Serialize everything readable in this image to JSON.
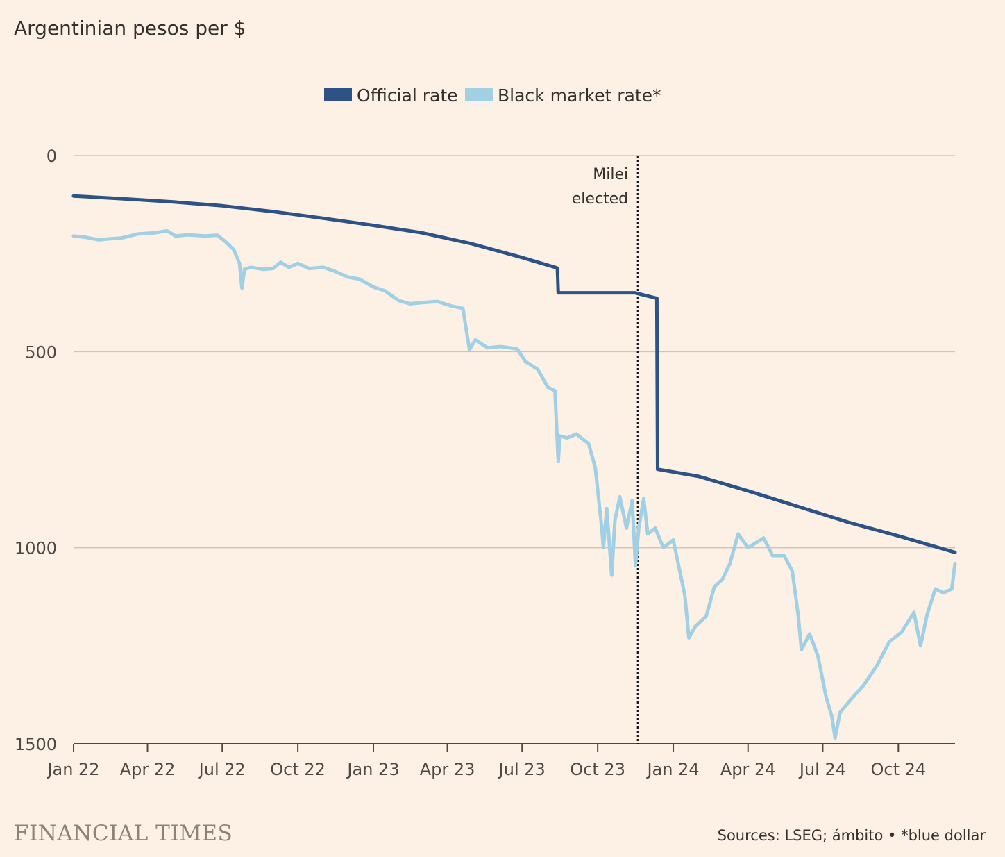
{
  "chart_data": {
    "type": "line",
    "title": "Argentinian pesos per $",
    "xlabel": "",
    "ylabel": "Argentinian pesos per $",
    "y_inverted": true,
    "ylim": [
      0,
      1500
    ],
    "yticks": [
      0,
      500,
      1000,
      1500
    ],
    "x_range": [
      "2022-01-01",
      "2024-12-09"
    ],
    "xticks": [
      {
        "label": "Jan 22",
        "date": "2022-01-01"
      },
      {
        "label": "Apr 22",
        "date": "2022-04-01"
      },
      {
        "label": "Jul 22",
        "date": "2022-07-01"
      },
      {
        "label": "Oct 22",
        "date": "2022-10-01"
      },
      {
        "label": "Jan 23",
        "date": "2023-01-01"
      },
      {
        "label": "Apr 23",
        "date": "2023-04-01"
      },
      {
        "label": "Jul 23",
        "date": "2023-07-01"
      },
      {
        "label": "Oct 23",
        "date": "2023-10-01"
      },
      {
        "label": "Jan 24",
        "date": "2024-01-01"
      },
      {
        "label": "Apr 24",
        "date": "2024-04-01"
      },
      {
        "label": "Jul 24",
        "date": "2024-07-01"
      },
      {
        "label": "Oct 24",
        "date": "2024-10-01"
      }
    ],
    "legend_position": "top-center",
    "grid": "horizontal",
    "series": [
      {
        "name": "Official rate",
        "color": "#2d5285",
        "points": [
          [
            "2022-01-01",
            103
          ],
          [
            "2022-03-01",
            110
          ],
          [
            "2022-05-01",
            118
          ],
          [
            "2022-07-01",
            128
          ],
          [
            "2022-09-01",
            143
          ],
          [
            "2022-11-01",
            160
          ],
          [
            "2023-01-01",
            178
          ],
          [
            "2023-03-01",
            197
          ],
          [
            "2023-05-01",
            225
          ],
          [
            "2023-07-01",
            260
          ],
          [
            "2023-08-10",
            285
          ],
          [
            "2023-08-13",
            287
          ],
          [
            "2023-08-14",
            350
          ],
          [
            "2023-11-15",
            350
          ],
          [
            "2023-12-12",
            364
          ],
          [
            "2023-12-13",
            800
          ],
          [
            "2024-02-01",
            818
          ],
          [
            "2024-04-01",
            855
          ],
          [
            "2024-06-01",
            895
          ],
          [
            "2024-08-01",
            935
          ],
          [
            "2024-10-01",
            970
          ],
          [
            "2024-12-09",
            1012
          ]
        ]
      },
      {
        "name": "Black market rate*",
        "color": "#a1d0e5",
        "points": [
          [
            "2022-01-01",
            205
          ],
          [
            "2022-01-15",
            208
          ],
          [
            "2022-02-01",
            215
          ],
          [
            "2022-02-15",
            212
          ],
          [
            "2022-03-01",
            210
          ],
          [
            "2022-03-20",
            200
          ],
          [
            "2022-04-10",
            197
          ],
          [
            "2022-04-25",
            192
          ],
          [
            "2022-05-05",
            205
          ],
          [
            "2022-05-20",
            202
          ],
          [
            "2022-06-10",
            205
          ],
          [
            "2022-06-25",
            203
          ],
          [
            "2022-07-05",
            220
          ],
          [
            "2022-07-15",
            240
          ],
          [
            "2022-07-22",
            275
          ],
          [
            "2022-07-25",
            338
          ],
          [
            "2022-07-28",
            290
          ],
          [
            "2022-08-05",
            285
          ],
          [
            "2022-08-20",
            290
          ],
          [
            "2022-09-01",
            288
          ],
          [
            "2022-09-10",
            272
          ],
          [
            "2022-09-20",
            285
          ],
          [
            "2022-10-01",
            275
          ],
          [
            "2022-10-15",
            288
          ],
          [
            "2022-11-01",
            285
          ],
          [
            "2022-11-15",
            295
          ],
          [
            "2022-12-01",
            310
          ],
          [
            "2022-12-15",
            315
          ],
          [
            "2023-01-01",
            335
          ],
          [
            "2023-01-15",
            345
          ],
          [
            "2023-02-01",
            370
          ],
          [
            "2023-02-15",
            378
          ],
          [
            "2023-03-01",
            375
          ],
          [
            "2023-03-20",
            372
          ],
          [
            "2023-04-05",
            383
          ],
          [
            "2023-04-20",
            390
          ],
          [
            "2023-04-26",
            470
          ],
          [
            "2023-04-28",
            495
          ],
          [
            "2023-05-05",
            470
          ],
          [
            "2023-05-20",
            490
          ],
          [
            "2023-06-05",
            487
          ],
          [
            "2023-06-25",
            493
          ],
          [
            "2023-07-05",
            525
          ],
          [
            "2023-07-20",
            545
          ],
          [
            "2023-08-01",
            590
          ],
          [
            "2023-08-10",
            600
          ],
          [
            "2023-08-14",
            780
          ],
          [
            "2023-08-16",
            715
          ],
          [
            "2023-08-25",
            720
          ],
          [
            "2023-09-05",
            710
          ],
          [
            "2023-09-20",
            735
          ],
          [
            "2023-09-28",
            795
          ],
          [
            "2023-10-05",
            930
          ],
          [
            "2023-10-08",
            1000
          ],
          [
            "2023-10-12",
            900
          ],
          [
            "2023-10-18",
            1070
          ],
          [
            "2023-10-22",
            930
          ],
          [
            "2023-10-28",
            870
          ],
          [
            "2023-11-05",
            950
          ],
          [
            "2023-11-12",
            880
          ],
          [
            "2023-11-16",
            1045
          ],
          [
            "2023-11-20",
            950
          ],
          [
            "2023-11-26",
            875
          ],
          [
            "2023-12-01",
            965
          ],
          [
            "2023-12-10",
            950
          ],
          [
            "2023-12-20",
            1000
          ],
          [
            "2024-01-01",
            980
          ],
          [
            "2024-01-15",
            1120
          ],
          [
            "2024-01-20",
            1230
          ],
          [
            "2024-01-28",
            1200
          ],
          [
            "2024-02-10",
            1175
          ],
          [
            "2024-02-20",
            1100
          ],
          [
            "2024-03-01",
            1080
          ],
          [
            "2024-03-10",
            1040
          ],
          [
            "2024-03-20",
            965
          ],
          [
            "2024-04-01",
            1000
          ],
          [
            "2024-04-20",
            975
          ],
          [
            "2024-05-01",
            1020
          ],
          [
            "2024-05-15",
            1020
          ],
          [
            "2024-05-25",
            1060
          ],
          [
            "2024-06-01",
            1170
          ],
          [
            "2024-06-05",
            1260
          ],
          [
            "2024-06-15",
            1220
          ],
          [
            "2024-06-25",
            1275
          ],
          [
            "2024-07-05",
            1380
          ],
          [
            "2024-07-12",
            1430
          ],
          [
            "2024-07-16",
            1485
          ],
          [
            "2024-07-22",
            1420
          ],
          [
            "2024-08-05",
            1385
          ],
          [
            "2024-08-20",
            1350
          ],
          [
            "2024-09-05",
            1300
          ],
          [
            "2024-09-20",
            1240
          ],
          [
            "2024-10-05",
            1215
          ],
          [
            "2024-10-20",
            1165
          ],
          [
            "2024-10-28",
            1250
          ],
          [
            "2024-11-05",
            1170
          ],
          [
            "2024-11-15",
            1105
          ],
          [
            "2024-11-25",
            1115
          ],
          [
            "2024-12-05",
            1105
          ],
          [
            "2024-12-09",
            1040
          ]
        ]
      }
    ],
    "annotations": [
      {
        "date": "2023-11-19",
        "lines": [
          "Milei",
          "elected"
        ],
        "style": "dotted-vertical"
      }
    ]
  },
  "brand": "FINANCIAL TIMES",
  "source": "Sources: LSEG; ámbito • *blue dollar"
}
